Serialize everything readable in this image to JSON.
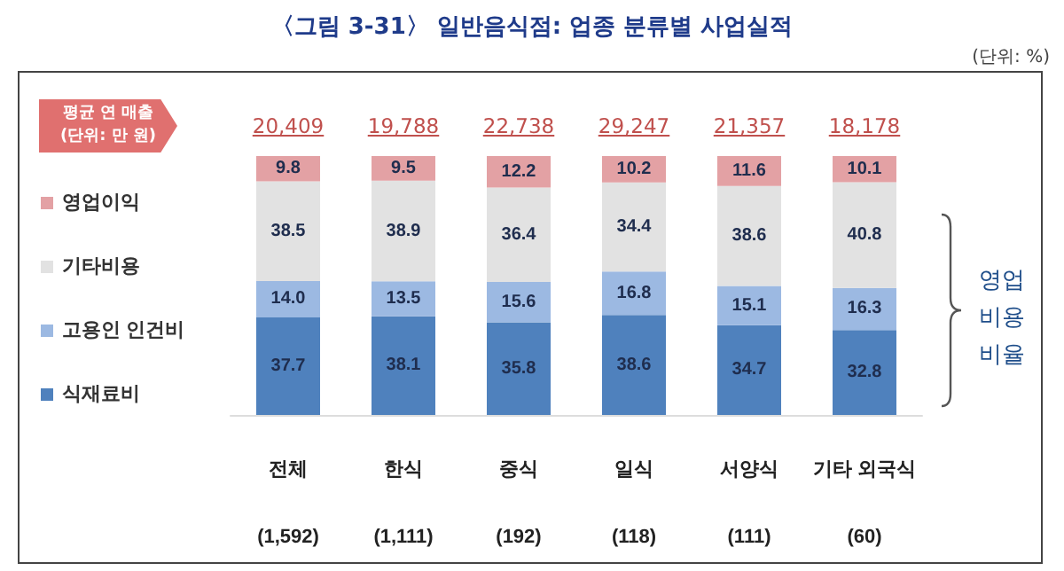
{
  "chart_data": {
    "type": "bar",
    "title": "〈그림 3-31〉 일반음식점: 업종 분류별 사업실적",
    "categories": [
      "전체\n(1,592)",
      "한식\n(1,111)",
      "중식\n(192)",
      "일식\n(118)",
      "서양식\n(111)",
      "기타 외국식\n(60)"
    ],
    "series": [
      {
        "name": "식재료비",
        "color": "#4f81bd",
        "values": [
          37.7,
          38.1,
          35.8,
          38.6,
          34.7,
          32.8
        ],
        "value_labels": [
          "37.7",
          "38.1",
          "35.8",
          "38.6",
          "34.7",
          "32.8"
        ]
      },
      {
        "name": "고용인 인건비",
        "color": "#9cb9e2",
        "values": [
          14.0,
          13.5,
          15.6,
          16.8,
          15.1,
          16.3
        ],
        "value_labels": [
          "14.0",
          "13.5",
          "15.6",
          "16.8",
          "15.1",
          "16.3"
        ]
      },
      {
        "name": "기타비용",
        "color": "#e2e2e2",
        "values": [
          38.5,
          38.9,
          36.4,
          34.4,
          38.6,
          40.8
        ],
        "value_labels": [
          "38.5",
          "38.9",
          "36.4",
          "34.4",
          "38.6",
          "40.8"
        ]
      },
      {
        "name": "영업이익",
        "color": "#e3a1a4",
        "values": [
          9.8,
          9.5,
          12.2,
          10.2,
          11.6,
          10.1
        ],
        "value_labels": [
          "9.8",
          "9.5",
          "12.2",
          "10.2",
          "11.6",
          "10.1"
        ]
      }
    ],
    "stacked": true,
    "ylim": [
      0,
      100
    ],
    "legend": "left",
    "tick_labels": "x",
    "annotations": [
      "(단위: %)",
      "평균 연 매출\n(단위: 만 원)",
      "영업\n비용\n비율",
      "20,409",
      "19,788",
      "22,738",
      "29,247",
      "21,357",
      "18,178"
    ]
  }
}
